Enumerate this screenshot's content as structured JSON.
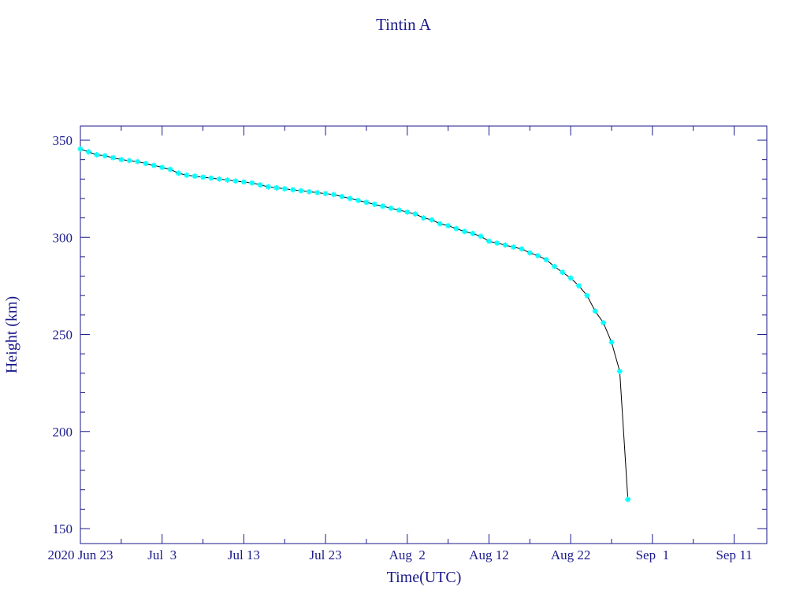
{
  "chart_data": {
    "type": "line",
    "title": "Tintin A",
    "x_label": "Time(UTC)",
    "y_label": "Height (km)",
    "x": [
      "2020-06-23",
      "2020-06-24",
      "2020-06-25",
      "2020-06-26",
      "2020-06-27",
      "2020-06-28",
      "2020-06-29",
      "2020-06-30",
      "2020-07-01",
      "2020-07-02",
      "2020-07-03",
      "2020-07-04",
      "2020-07-05",
      "2020-07-06",
      "2020-07-07",
      "2020-07-08",
      "2020-07-09",
      "2020-07-10",
      "2020-07-11",
      "2020-07-12",
      "2020-07-13",
      "2020-07-14",
      "2020-07-15",
      "2020-07-16",
      "2020-07-17",
      "2020-07-18",
      "2020-07-19",
      "2020-07-20",
      "2020-07-21",
      "2020-07-22",
      "2020-07-23",
      "2020-07-24",
      "2020-07-25",
      "2020-07-26",
      "2020-07-27",
      "2020-07-28",
      "2020-07-29",
      "2020-07-30",
      "2020-07-31",
      "2020-08-01",
      "2020-08-02",
      "2020-08-03",
      "2020-08-04",
      "2020-08-05",
      "2020-08-06",
      "2020-08-07",
      "2020-08-08",
      "2020-08-09",
      "2020-08-10",
      "2020-08-11",
      "2020-08-12",
      "2020-08-13",
      "2020-08-14",
      "2020-08-15",
      "2020-08-16",
      "2020-08-17",
      "2020-08-18",
      "2020-08-19",
      "2020-08-20",
      "2020-08-21",
      "2020-08-22",
      "2020-08-23",
      "2020-08-24",
      "2020-08-25",
      "2020-08-26",
      "2020-08-27",
      "2020-08-28",
      "2020-08-29"
    ],
    "values": [
      345.5,
      344,
      342.5,
      342,
      341,
      340,
      339.5,
      339,
      338,
      337,
      336,
      335,
      333,
      332,
      331.5,
      331,
      330.5,
      330,
      329.5,
      329,
      328.5,
      328,
      327,
      326,
      325.5,
      325,
      324.5,
      324,
      323.5,
      323,
      322.5,
      322,
      321,
      320,
      319,
      318,
      317,
      316,
      315,
      314,
      313,
      312,
      310,
      309,
      307,
      306,
      304.5,
      303,
      302,
      300.5,
      298,
      297,
      296,
      295,
      294,
      292,
      290.5,
      288.5,
      285,
      282,
      279,
      275,
      270,
      262,
      256,
      246,
      231,
      165
    ],
    "color": "#00ffff",
    "line_color": "#000000",
    "axis_color": "#1a1a8c",
    "xlim": [
      "2020-06-23",
      "2020-09-15"
    ],
    "xticks": [
      {
        "value": "2020-06-23",
        "label": "2020 Jun 23"
      },
      {
        "value": "2020-07-03",
        "label": "Jul  3"
      },
      {
        "value": "2020-07-13",
        "label": "Jul 13"
      },
      {
        "value": "2020-07-23",
        "label": "Jul 23"
      },
      {
        "value": "2020-08-02",
        "label": "Aug  2"
      },
      {
        "value": "2020-08-12",
        "label": "Aug 12"
      },
      {
        "value": "2020-08-22",
        "label": "Aug 22"
      },
      {
        "value": "2020-09-01",
        "label": "Sep  1"
      },
      {
        "value": "2020-09-11",
        "label": "Sep 11"
      }
    ],
    "xticks_minor": [
      "2020-06-28",
      "2020-07-08",
      "2020-07-18",
      "2020-07-28",
      "2020-08-07",
      "2020-08-17",
      "2020-08-27",
      "2020-09-06"
    ],
    "ylim": [
      142.3,
      357.3
    ],
    "yticks": [
      150,
      200,
      250,
      300,
      350
    ],
    "yticks_minor": [
      160,
      170,
      180,
      190,
      210,
      220,
      230,
      240,
      260,
      270,
      280,
      290,
      310,
      320,
      330,
      340
    ]
  }
}
